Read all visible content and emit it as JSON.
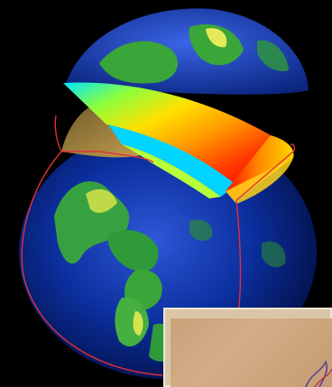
{
  "scene": {
    "subject": "globe-with-sectional-cutaway",
    "background_color": "#000000",
    "ocean_color": "#0a2a9a",
    "land_color": "#3aa63a",
    "highland_color": "#e8e85a",
    "outline_color": "#e0303a"
  },
  "cutaway": {
    "gradient_colors": [
      "#00e5ff",
      "#9dff3a",
      "#ffe100",
      "#ff8a00",
      "#ff3000",
      "#ff0000"
    ]
  },
  "inset": {
    "paper_color": "#c9a27a",
    "frame_color": "#efe6d4"
  }
}
